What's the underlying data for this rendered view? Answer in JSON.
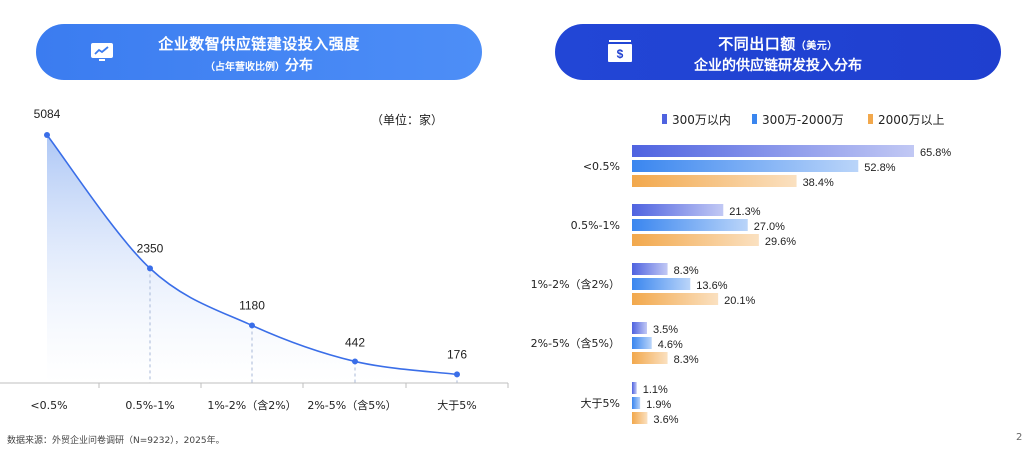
{
  "left_header": {
    "title_line1": "企业数智供应链建设投入强度",
    "title_line2_small": "（占年营收比例）",
    "title_line2_main": "分布"
  },
  "right_header": {
    "title_line1_main": "不同出口额",
    "title_line1_small": "（美元）",
    "title_line2": "企业的供应链研发投入分布"
  },
  "unit_label": "（单位：家）",
  "source": "数据来源：外贸企业问卷调研（N=9232），2025年。",
  "page_number": "2",
  "colors": {
    "line": "#3a6ee8",
    "area_top": "#a9c4f5",
    "series1": "#4f63e0",
    "series2": "#3a86ef",
    "series3": "#f2a84c"
  },
  "chart_data": [
    {
      "type": "area",
      "title": "企业数智供应链建设投入强度（占年营收比例）分布",
      "unit": "家",
      "categories": [
        "<0.5%",
        "0.5%-1%",
        "1%-2%（含2%）",
        "2%-5%（含5%）",
        "大于5%"
      ],
      "values": [
        5084,
        2350,
        1180,
        442,
        176
      ],
      "value_labels": [
        "5084",
        "2350",
        "1180",
        "442",
        "176"
      ],
      "ylim": [
        0,
        5084
      ]
    },
    {
      "type": "bar",
      "orientation": "horizontal",
      "title": "不同出口额（美元）企业的供应链研发投入分布",
      "categories": [
        "<0.5%",
        "0.5%-1%",
        "1%-2%（含2%）",
        "2%-5%（含5%）",
        "大于5%"
      ],
      "series": [
        {
          "name": "300万以内",
          "values": [
            65.8,
            21.3,
            8.3,
            3.5,
            1.1
          ],
          "labels": [
            "65.8%",
            "21.3%",
            "8.3%",
            "3.5%",
            "1.1%"
          ]
        },
        {
          "name": "300万-2000万",
          "values": [
            52.8,
            27.0,
            13.6,
            4.6,
            1.9
          ],
          "labels": [
            "52.8%",
            "27.0%",
            "13.6%",
            "4.6%",
            "1.9%"
          ]
        },
        {
          "name": "2000万以上",
          "values": [
            38.4,
            29.6,
            20.1,
            8.3,
            3.6
          ],
          "labels": [
            "38.4%",
            "29.6%",
            "20.1%",
            "8.3%",
            "3.6%"
          ]
        }
      ],
      "xlim": [
        0,
        65.8
      ]
    }
  ]
}
